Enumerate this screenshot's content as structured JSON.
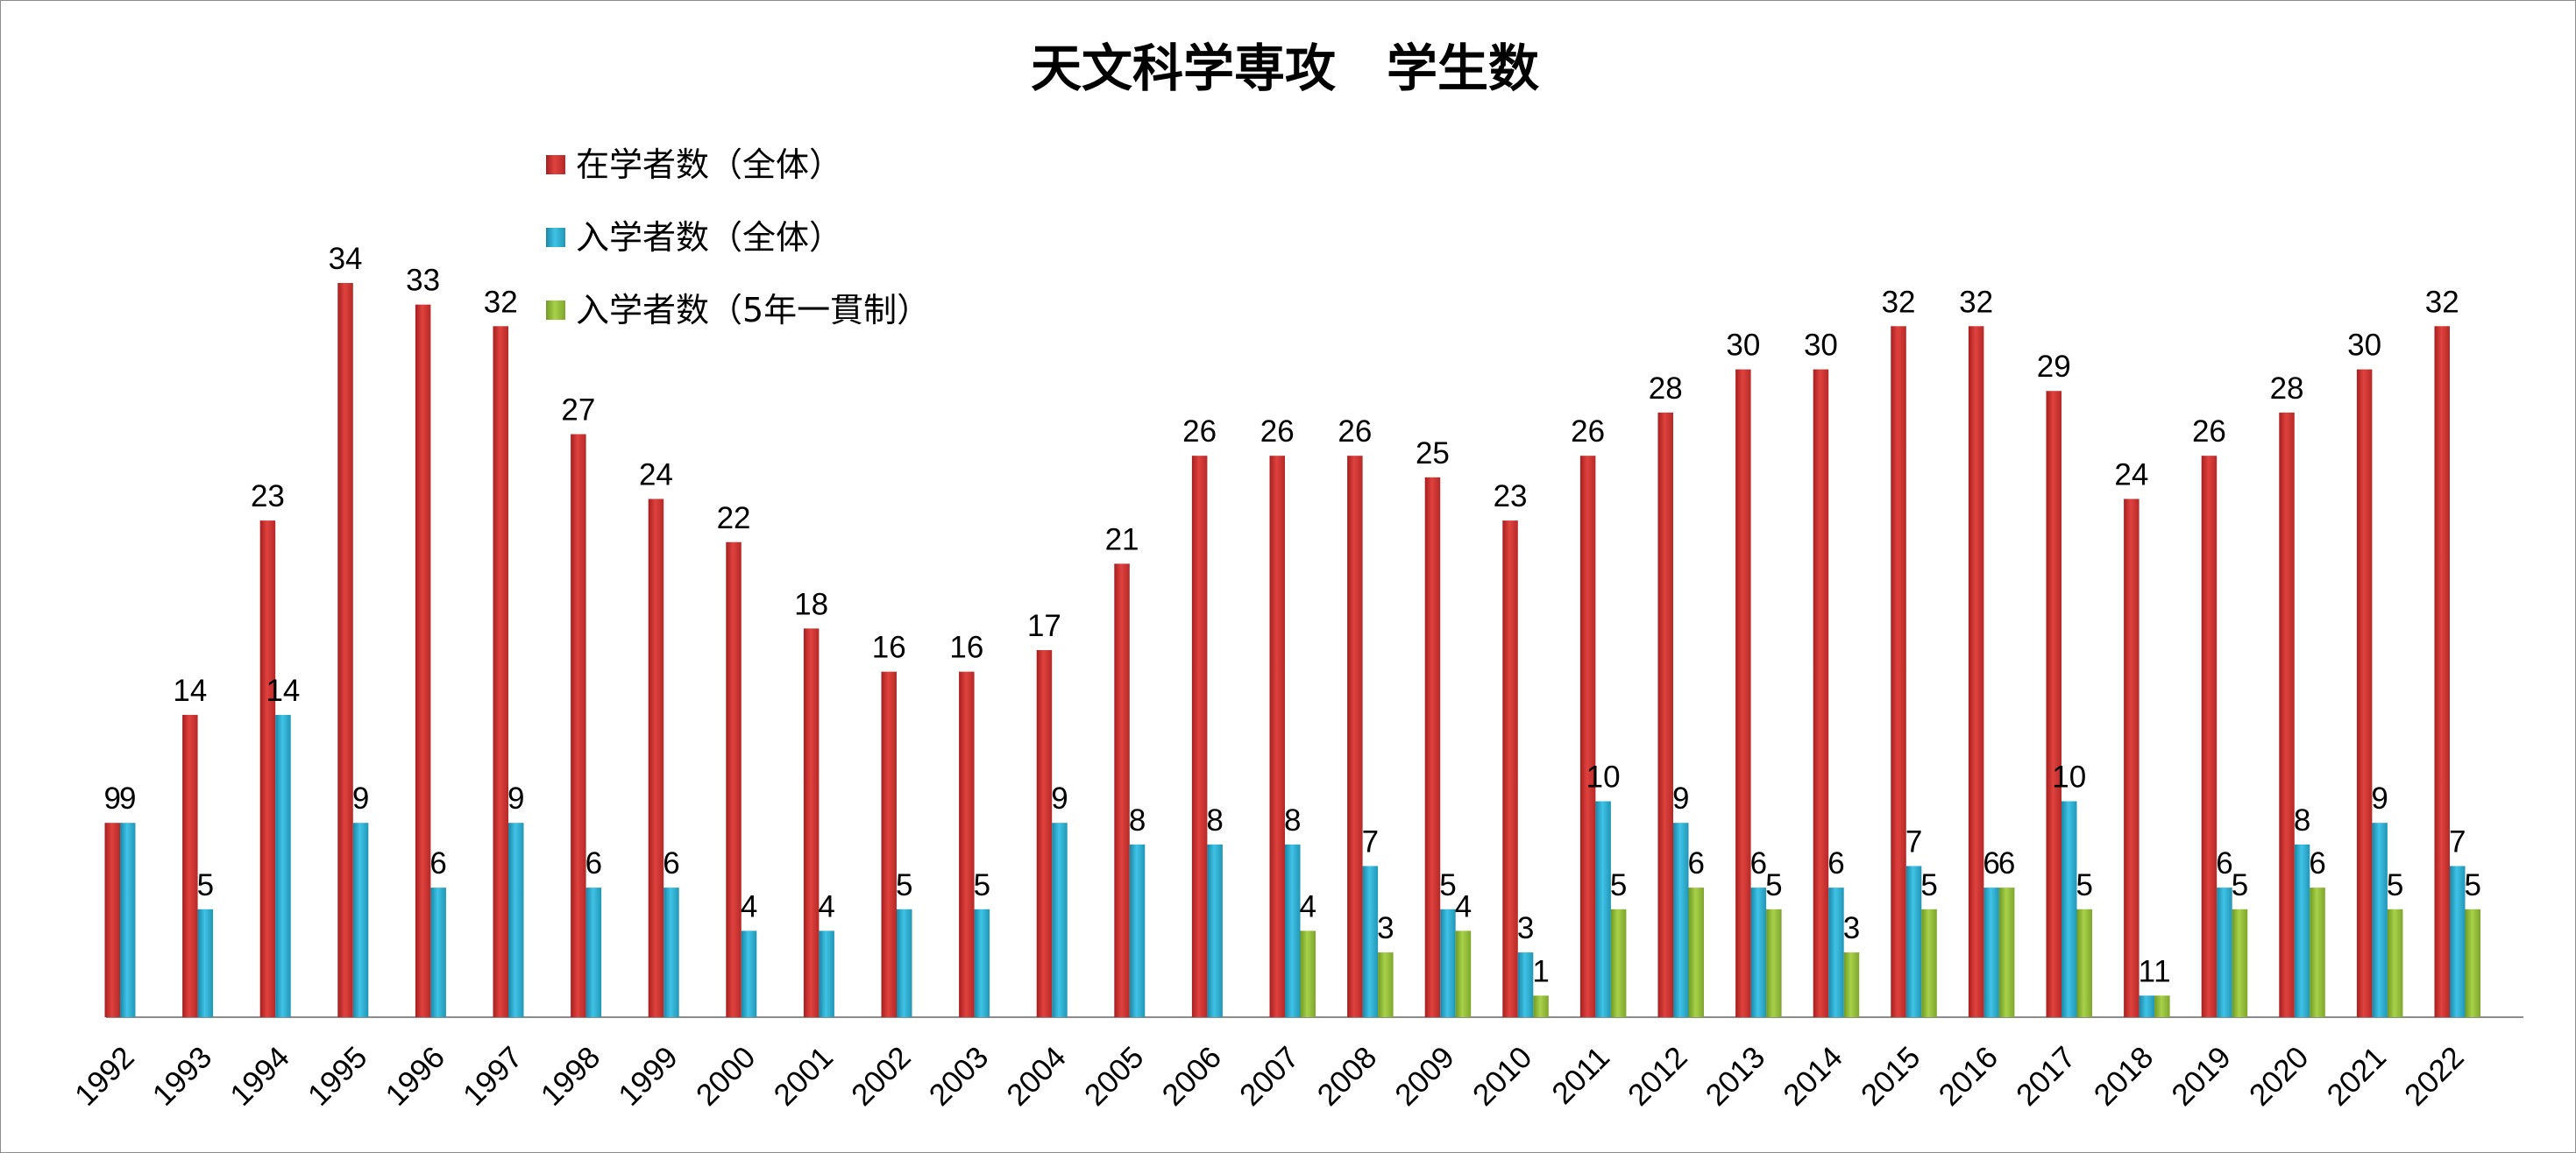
{
  "chart_data": {
    "type": "bar",
    "title": "天文科学専攻　学生数",
    "xlabel": "",
    "ylabel": "",
    "ylim": [
      0,
      34
    ],
    "grid": false,
    "legend_position": "top-left",
    "categories": [
      "1992",
      "1993",
      "1994",
      "1995",
      "1996",
      "1997",
      "1998",
      "1999",
      "2000",
      "2001",
      "2002",
      "2003",
      "2004",
      "2005",
      "2006",
      "2007",
      "2008",
      "2009",
      "2010",
      "2011",
      "2012",
      "2013",
      "2014",
      "2015",
      "2016",
      "2017",
      "2018",
      "2019",
      "2020",
      "2021",
      "2022"
    ],
    "series": [
      {
        "name": "在学者数（全体）",
        "color": "#c8322f",
        "values": [
          9,
          14,
          23,
          34,
          33,
          32,
          27,
          24,
          22,
          18,
          16,
          16,
          17,
          21,
          26,
          26,
          26,
          25,
          23,
          26,
          28,
          30,
          30,
          32,
          32,
          29,
          24,
          26,
          28,
          30,
          32
        ]
      },
      {
        "name": "入学者数（全体）",
        "color": "#2aa3c4",
        "values": [
          9,
          5,
          14,
          9,
          6,
          9,
          6,
          6,
          4,
          4,
          5,
          5,
          9,
          8,
          8,
          8,
          7,
          5,
          3,
          10,
          9,
          6,
          6,
          7,
          6,
          10,
          1,
          6,
          8,
          9,
          7
        ]
      },
      {
        "name": "入学者数（5年一貫制）",
        "color": "#8db73a",
        "values": [
          null,
          null,
          null,
          null,
          null,
          null,
          null,
          null,
          null,
          null,
          null,
          null,
          null,
          null,
          null,
          4,
          3,
          4,
          1,
          5,
          6,
          5,
          3,
          5,
          6,
          5,
          1,
          5,
          6,
          5,
          5
        ]
      }
    ]
  }
}
